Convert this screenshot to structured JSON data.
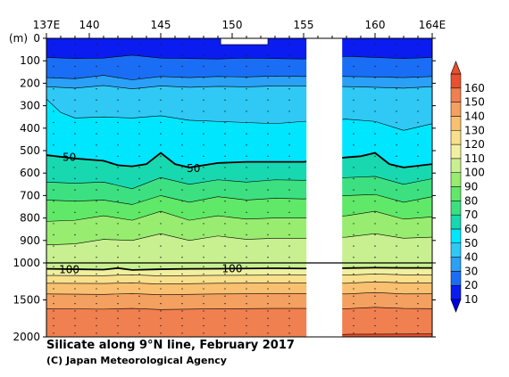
{
  "chart_data": {
    "type": "heatmap",
    "title": "Silicate along 9°N line, February 2017",
    "credit": "(C) Japan Meteorological Agency",
    "y_unit_label": "(m)",
    "x_ticks": [
      {
        "value": 137,
        "label": "137E"
      },
      {
        "value": 140,
        "label": "140"
      },
      {
        "value": 145,
        "label": "145"
      },
      {
        "value": 150,
        "label": "150"
      },
      {
        "value": 155,
        "label": "155"
      },
      {
        "value": 160,
        "label": "160"
      },
      {
        "value": 164,
        "label": "164E"
      }
    ],
    "y_ticks_upper": [
      0,
      100,
      200,
      300,
      400,
      500,
      600,
      700,
      800,
      900,
      1000
    ],
    "y_ticks_lower": [
      1500,
      2000
    ],
    "xlim": [
      137,
      164
    ],
    "ylim_upper": [
      0,
      1000
    ],
    "ylim_lower": [
      1000,
      2000
    ],
    "missing_ranges": [
      [
        155.2,
        157.7
      ]
    ],
    "colorbar_levels": [
      10,
      20,
      30,
      40,
      50,
      60,
      70,
      80,
      90,
      100,
      110,
      120,
      130,
      140,
      150,
      160
    ],
    "colorbar_colors": [
      "#0a1cf0",
      "#1a6ef5",
      "#2aa0f7",
      "#30c8f5",
      "#00e6ff",
      "#18d8b0",
      "#3ce080",
      "#60e868",
      "#98ec70",
      "#c8f090",
      "#f0f0a0",
      "#f8e08c",
      "#f8c070",
      "#f4a060",
      "#f08050",
      "#e85030"
    ],
    "contours": [
      {
        "value": 10,
        "x": [
          137,
          139,
          141,
          143,
          145,
          147,
          149,
          151,
          153,
          155,
          158,
          160,
          162,
          164
        ],
        "y": [
          85,
          90,
          88,
          75,
          88,
          90,
          92,
          88,
          90,
          92,
          80,
          85,
          90,
          85
        ]
      },
      {
        "value": 20,
        "x": [
          137,
          139,
          141,
          143,
          145,
          147,
          149,
          151,
          153,
          155,
          158,
          160,
          162,
          164
        ],
        "y": [
          175,
          180,
          165,
          185,
          170,
          175,
          170,
          172,
          168,
          170,
          170,
          172,
          175,
          170
        ]
      },
      {
        "value": 30,
        "x": [
          137,
          139,
          141,
          143,
          145,
          147,
          149,
          151,
          153,
          155,
          158,
          160,
          162,
          164
        ],
        "y": [
          215,
          222,
          210,
          225,
          212,
          218,
          214,
          216,
          212,
          212,
          215,
          218,
          222,
          215
        ]
      },
      {
        "value": 40,
        "x": [
          137,
          138,
          139,
          141,
          143,
          145,
          147,
          149,
          151,
          153,
          155,
          158,
          160,
          162,
          164
        ],
        "y": [
          270,
          330,
          355,
          350,
          355,
          345,
          365,
          370,
          375,
          380,
          370,
          360,
          370,
          410,
          380
        ]
      },
      {
        "value": 50,
        "x": [
          137,
          139,
          141,
          142,
          143,
          144,
          145,
          146,
          147,
          149,
          151,
          153,
          155,
          158,
          159,
          160,
          161,
          162,
          164
        ],
        "y": [
          520,
          535,
          545,
          565,
          570,
          560,
          510,
          560,
          575,
          555,
          550,
          550,
          550,
          530,
          525,
          510,
          560,
          575,
          560
        ]
      },
      {
        "value": 60,
        "x": [
          137,
          139,
          141,
          143,
          145,
          147,
          149,
          151,
          153,
          155,
          158,
          160,
          162,
          164
        ],
        "y": [
          640,
          645,
          640,
          670,
          620,
          650,
          630,
          640,
          630,
          632,
          620,
          615,
          650,
          625
        ]
      },
      {
        "value": 70,
        "x": [
          137,
          139,
          141,
          143,
          145,
          147,
          149,
          151,
          153,
          155,
          158,
          160,
          162,
          164
        ],
        "y": [
          720,
          725,
          720,
          740,
          700,
          730,
          705,
          720,
          712,
          715,
          700,
          695,
          730,
          705
        ]
      },
      {
        "value": 80,
        "x": [
          137,
          139,
          141,
          143,
          145,
          147,
          149,
          151,
          153,
          155,
          158,
          160,
          162,
          164
        ],
        "y": [
          815,
          810,
          790,
          810,
          770,
          810,
          790,
          805,
          800,
          800,
          790,
          770,
          805,
          795
        ]
      },
      {
        "value": 90,
        "x": [
          137,
          139,
          141,
          143,
          145,
          147,
          149,
          151,
          153,
          155,
          158,
          160,
          162,
          164
        ],
        "y": [
          920,
          915,
          895,
          900,
          870,
          900,
          880,
          895,
          890,
          890,
          885,
          870,
          890,
          885
        ]
      },
      {
        "value": 100,
        "x": [
          137,
          139,
          141,
          142,
          143,
          145,
          147,
          149,
          151,
          153,
          155,
          158,
          160,
          162,
          164
        ],
        "y": [
          1080,
          1085,
          1090,
          1070,
          1095,
          1085,
          1080,
          1078,
          1075,
          1072,
          1075,
          1070,
          1065,
          1068,
          1068
        ]
      },
      {
        "value": 110,
        "x": [
          137,
          141,
          143,
          145,
          149,
          153,
          155,
          158,
          160,
          162,
          164
        ],
        "y": [
          1170,
          1172,
          1160,
          1175,
          1168,
          1165,
          1165,
          1165,
          1150,
          1160,
          1160
        ]
      },
      {
        "value": 120,
        "x": [
          137,
          141,
          143,
          145,
          149,
          153,
          155,
          158,
          160,
          162,
          164
        ],
        "y": [
          1275,
          1278,
          1270,
          1285,
          1275,
          1272,
          1272,
          1275,
          1255,
          1270,
          1270
        ]
      },
      {
        "value": 130,
        "x": [
          137,
          141,
          143,
          145,
          149,
          153,
          155,
          158,
          160,
          162,
          164
        ],
        "y": [
          1420,
          1425,
          1415,
          1430,
          1420,
          1415,
          1415,
          1420,
          1400,
          1420,
          1418
        ]
      },
      {
        "value": 140,
        "x": [
          137,
          141,
          143,
          145,
          149,
          153,
          155,
          158,
          160,
          162,
          164
        ],
        "y": [
          1620,
          1625,
          1615,
          1630,
          1620,
          1615,
          1615,
          1620,
          1600,
          1615,
          1618
        ]
      },
      {
        "value": 150,
        "x": [
          137,
          145,
          150,
          155,
          158,
          164
        ],
        "y": [
          2010,
          2010,
          2010,
          2010,
          1965,
          1960
        ]
      }
    ],
    "contour_labels": [
      {
        "text": "50",
        "x": 138.6,
        "y": 530
      },
      {
        "text": "50",
        "x": 147.3,
        "y": 580
      },
      {
        "text": "100",
        "x": 138.6,
        "y": 1090
      },
      {
        "text": "100",
        "x": 150.0,
        "y": 1078
      }
    ],
    "station_columns": [
      137.5,
      139,
      140.5,
      142,
      143.5,
      145,
      146.5,
      148,
      149.5,
      151,
      152.5,
      154,
      158.5,
      160,
      161.5,
      163
    ]
  }
}
